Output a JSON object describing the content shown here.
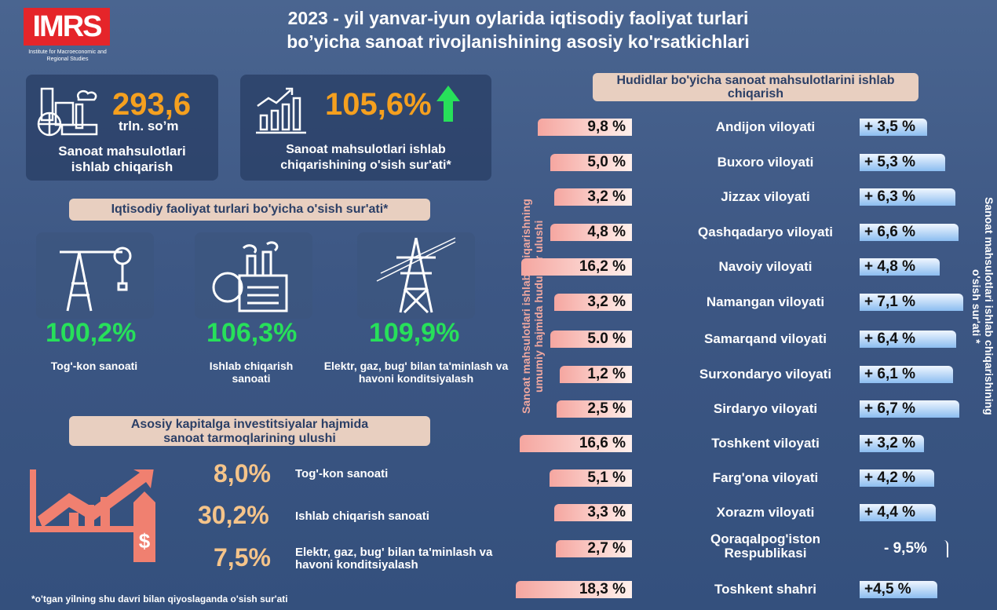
{
  "logo": {
    "text": "IMRS",
    "subtitle": "Institute for Macroeconomic and Regional Studies"
  },
  "title": {
    "line1": "2023 - yil yanvar-iyun oylarida iqtisodiy faoliyat turlari",
    "line2": "bo’yicha sanoat rivojlanishining asosiy ko'rsatkichlari"
  },
  "kpi1": {
    "value": "293,6",
    "unit": "trln. so’m",
    "label1": "Sanoat mahsulotlari",
    "label2": "ishlab chiqarish",
    "icon": "factory-icon"
  },
  "kpi2": {
    "value": "105,6%",
    "label1": "Sanoat mahsulotlari ishlab",
    "label2": "chiqarishining o'sish sur'ati*",
    "icon": "growth-chart-icon"
  },
  "growth_section": {
    "title": "Iqtisodiy faoliyat turlari bo'yicha o'sish sur'ati*",
    "items": [
      {
        "value": "100,2%",
        "label": "Tog'-kon sanoati",
        "icon": "oil-pump-icon"
      },
      {
        "value": "106,3%",
        "label": "Ishlab chiqarish sanoati",
        "icon": "factory-gear-icon"
      },
      {
        "value": "109,9%",
        "label": "Elektr, gaz, bug' bilan ta'minlash va havoni konditsiyalash",
        "icon": "power-tower-icon"
      }
    ]
  },
  "invest_section": {
    "title1": "Asosiy kapitalga investitsiyalar hajmida",
    "title2": "sanoat tarmoqlarining ulushi",
    "items": [
      {
        "value": "8,0%",
        "label": "Tog'-kon sanoati"
      },
      {
        "value": "30,2%",
        "label": "Ishlab chiqarish sanoati"
      },
      {
        "value": "7,5%",
        "label": "Elektr, gaz, bug' bilan ta'minlash va havoni konditsiyalash"
      }
    ]
  },
  "footnote": "*o'tgan yilning shu davri bilan qiyoslaganda o'sish sur'ati",
  "chart_data": {
    "type": "bar",
    "title": "Hudidlar bo'yicha sanoat  mahsulotlarini ishlab chiqarish",
    "left_axis_label": "Sanoat mahsulotlari ishlab chiqarishning umumiy hajmida hududlar ulushi",
    "right_axis_label": "Sanoat mahsulotlari ishlab chiqarishining o'sish sur'ati *",
    "categories": [
      "Andijon viloyati",
      "Buxoro viloyati",
      "Jizzax viloyati",
      "Qashqadaryo viloyati",
      "Navoiy viloyati",
      "Namangan viloyati",
      "Samarqand viloyati",
      "Surxondaryo viloyati",
      "Sirdaryo viloyati",
      "Toshkent viloyati",
      "Farg'ona viloyati",
      "Xorazm viloyati",
      "Qoraqalpog'iston Respublikasi",
      "Toshkent shahri"
    ],
    "series": [
      {
        "name": "share",
        "values": [
          9.8,
          5.0,
          3.2,
          4.8,
          16.2,
          3.2,
          5.0,
          1.2,
          2.5,
          16.6,
          5.1,
          3.3,
          2.7,
          18.3
        ],
        "labels": [
          "9,8 %",
          "5,0 %",
          "3,2 %",
          "4,8 %",
          "16,2 %",
          "3,2 %",
          "5.0 %",
          "1,2 %",
          "2,5 %",
          "16,6 %",
          "5,1 %",
          "3,3 %",
          "2,7 %",
          "18,3 %"
        ]
      },
      {
        "name": "growth",
        "values": [
          3.5,
          5.3,
          6.3,
          6.6,
          4.8,
          7.1,
          6.4,
          6.1,
          6.7,
          3.2,
          4.2,
          4.4,
          -9.5,
          4.5
        ],
        "labels": [
          "+ 3,5 %",
          "+ 5,3 %",
          "+ 6,3 %",
          "+ 6,6 %",
          "+ 4,8 %",
          "+ 7,1 %",
          "+ 6,4 %",
          "+ 6,1 %",
          "+ 6,7 %",
          "+ 3,2 %",
          "+ 4,2 %",
          "+ 4,4 %",
          "- 9,5%",
          "+4,5 %"
        ]
      }
    ]
  },
  "colors": {
    "orange": "#f5a01f",
    "green": "#27e05a",
    "red": "#e5252a"
  }
}
